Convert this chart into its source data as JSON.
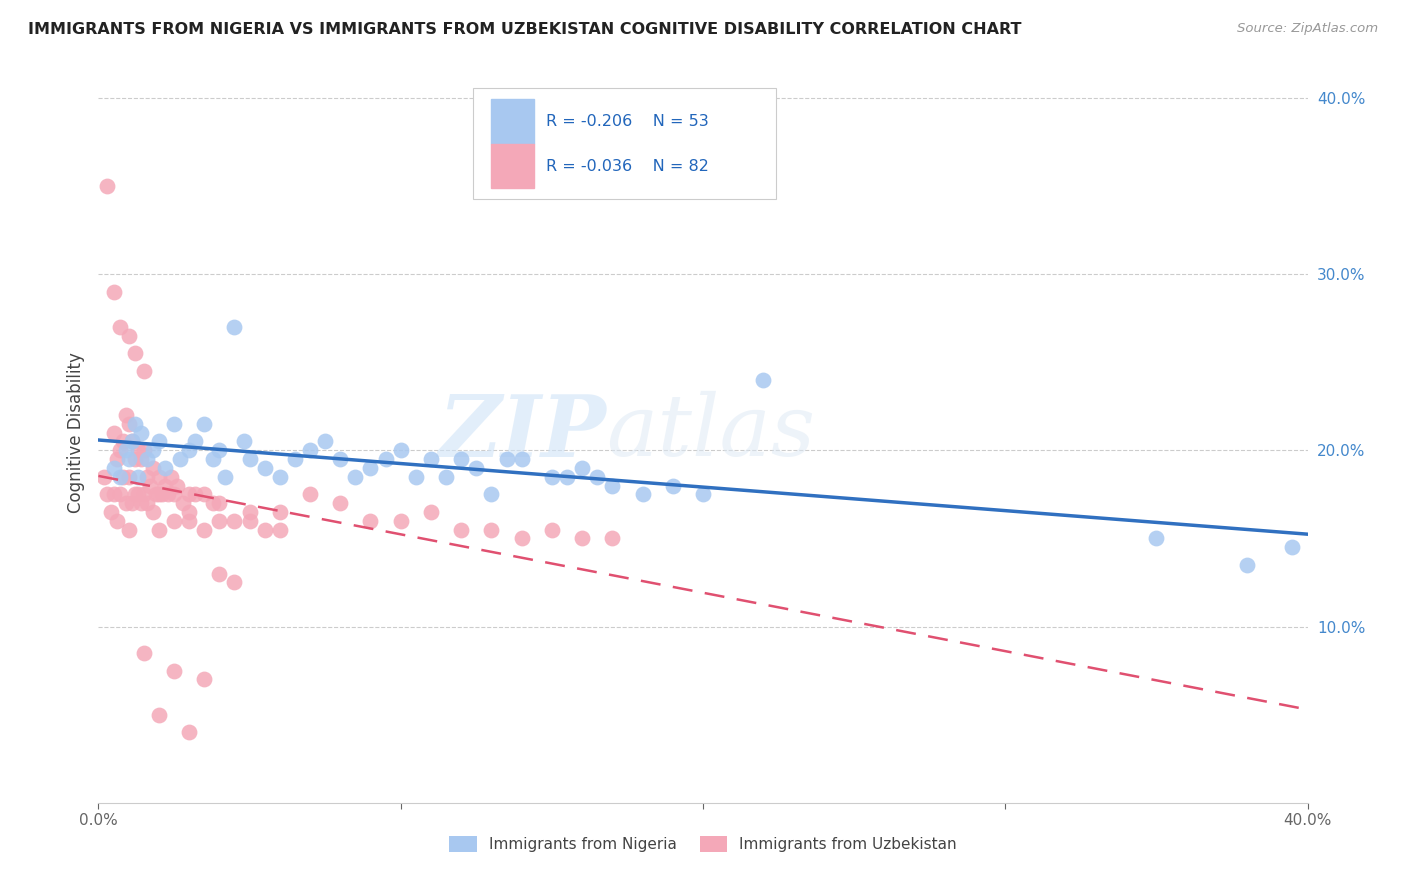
{
  "title": "IMMIGRANTS FROM NIGERIA VS IMMIGRANTS FROM UZBEKISTAN COGNITIVE DISABILITY CORRELATION CHART",
  "source": "Source: ZipAtlas.com",
  "ylabel": "Cognitive Disability",
  "xlim": [
    0.0,
    0.4
  ],
  "ylim": [
    0.0,
    0.42
  ],
  "xticks": [
    0.0,
    0.1,
    0.2,
    0.3,
    0.4
  ],
  "yticks": [
    0.1,
    0.2,
    0.3,
    0.4
  ],
  "xtick_labels": [
    "0.0%",
    "",
    "",
    "",
    "40.0%"
  ],
  "ytick_labels_right": [
    "10.0%",
    "20.0%",
    "30.0%",
    "40.0%"
  ],
  "legend_label1": "Immigrants from Nigeria",
  "legend_label2": "Immigrants from Uzbekistan",
  "R1": "-0.206",
  "N1": "53",
  "R2": "-0.036",
  "N2": "82",
  "color_nigeria": "#a8c8f0",
  "color_uzbekistan": "#f4a8b8",
  "line_color_nigeria": "#3070c0",
  "line_color_uzbekistan": "#e05070",
  "watermark_zip": "ZIP",
  "watermark_atlas": "atlas",
  "nigeria_x": [
    0.005,
    0.007,
    0.009,
    0.01,
    0.011,
    0.012,
    0.013,
    0.014,
    0.016,
    0.018,
    0.02,
    0.022,
    0.025,
    0.027,
    0.03,
    0.032,
    0.035,
    0.038,
    0.04,
    0.042,
    0.045,
    0.048,
    0.05,
    0.055,
    0.06,
    0.065,
    0.07,
    0.075,
    0.08,
    0.085,
    0.09,
    0.095,
    0.1,
    0.105,
    0.11,
    0.115,
    0.12,
    0.125,
    0.13,
    0.135,
    0.14,
    0.15,
    0.155,
    0.16,
    0.165,
    0.17,
    0.18,
    0.19,
    0.2,
    0.22,
    0.35,
    0.38,
    0.395
  ],
  "nigeria_y": [
    0.19,
    0.185,
    0.2,
    0.195,
    0.205,
    0.215,
    0.185,
    0.21,
    0.195,
    0.2,
    0.205,
    0.19,
    0.215,
    0.195,
    0.2,
    0.205,
    0.215,
    0.195,
    0.2,
    0.185,
    0.27,
    0.205,
    0.195,
    0.19,
    0.185,
    0.195,
    0.2,
    0.205,
    0.195,
    0.185,
    0.19,
    0.195,
    0.2,
    0.185,
    0.195,
    0.185,
    0.195,
    0.19,
    0.175,
    0.195,
    0.195,
    0.185,
    0.185,
    0.19,
    0.185,
    0.18,
    0.175,
    0.18,
    0.175,
    0.24,
    0.15,
    0.135,
    0.145
  ],
  "uzbekistan_x": [
    0.002,
    0.003,
    0.004,
    0.005,
    0.005,
    0.006,
    0.006,
    0.007,
    0.007,
    0.008,
    0.008,
    0.009,
    0.009,
    0.01,
    0.01,
    0.011,
    0.011,
    0.012,
    0.012,
    0.013,
    0.013,
    0.014,
    0.014,
    0.015,
    0.015,
    0.016,
    0.016,
    0.017,
    0.018,
    0.019,
    0.02,
    0.021,
    0.022,
    0.023,
    0.024,
    0.025,
    0.026,
    0.028,
    0.03,
    0.032,
    0.035,
    0.038,
    0.04,
    0.045,
    0.05,
    0.055,
    0.06,
    0.07,
    0.08,
    0.09,
    0.1,
    0.11,
    0.12,
    0.13,
    0.14,
    0.15,
    0.16,
    0.17,
    0.01,
    0.02,
    0.03,
    0.04,
    0.05,
    0.06,
    0.003,
    0.005,
    0.007,
    0.01,
    0.012,
    0.015,
    0.018,
    0.02,
    0.025,
    0.03,
    0.035,
    0.04,
    0.045,
    0.015,
    0.025,
    0.035,
    0.02,
    0.03
  ],
  "uzbekistan_y": [
    0.185,
    0.175,
    0.165,
    0.21,
    0.175,
    0.195,
    0.16,
    0.2,
    0.175,
    0.205,
    0.185,
    0.22,
    0.17,
    0.215,
    0.185,
    0.205,
    0.17,
    0.195,
    0.175,
    0.2,
    0.175,
    0.195,
    0.17,
    0.2,
    0.175,
    0.185,
    0.17,
    0.18,
    0.19,
    0.175,
    0.185,
    0.175,
    0.18,
    0.175,
    0.185,
    0.175,
    0.18,
    0.17,
    0.175,
    0.175,
    0.175,
    0.17,
    0.17,
    0.16,
    0.165,
    0.155,
    0.165,
    0.175,
    0.17,
    0.16,
    0.16,
    0.165,
    0.155,
    0.155,
    0.15,
    0.155,
    0.15,
    0.15,
    0.155,
    0.155,
    0.16,
    0.16,
    0.16,
    0.155,
    0.35,
    0.29,
    0.27,
    0.265,
    0.255,
    0.245,
    0.165,
    0.175,
    0.16,
    0.165,
    0.155,
    0.13,
    0.125,
    0.085,
    0.075,
    0.07,
    0.05,
    0.04
  ]
}
